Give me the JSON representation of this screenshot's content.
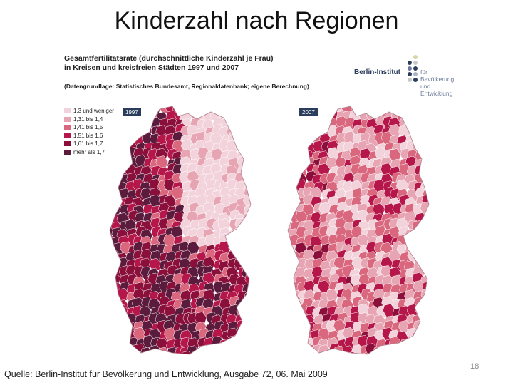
{
  "slide": {
    "title": "Kinderzahl nach Regionen",
    "source": "Quelle: Berlin-Institut für Bevölkerung und Entwicklung, Ausgabe 72, 06. Mai 2009",
    "page_number": "18"
  },
  "figure": {
    "header": "Gesamtfertilitätsrate (durchschnittliche Kinderzahl je Frau) in Kreisen und kreisfreien Städten 1997 und 2007",
    "subheader": "(Datengrundlage: Statistisches Bundesamt, Regionaldatenbank; eigene Berechnung)",
    "logo": {
      "name": "Berlin-Institut",
      "tagline_1": "für Bevölkerung",
      "tagline_2": "und Entwicklung"
    },
    "legend": [
      {
        "label": "1,3 und weniger",
        "color": "#f3d3db"
      },
      {
        "label": "1,31 bis 1,4",
        "color": "#e7a5b4"
      },
      {
        "label": "1,41 bis 1,5",
        "color": "#d9687f"
      },
      {
        "label": "1,51 bis 1,6",
        "color": "#b5174a"
      },
      {
        "label": "1,61 bis 1,7",
        "color": "#8a0f3a"
      },
      {
        "label": "mehr als 1,7",
        "color": "#5a1b3c"
      }
    ],
    "maps": [
      {
        "year": "1997"
      },
      {
        "year": "2007"
      }
    ]
  }
}
